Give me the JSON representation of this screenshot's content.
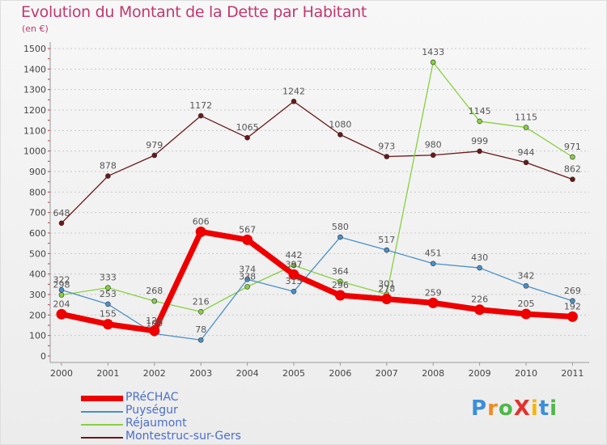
{
  "title": "Evolution du Montant de la Dette par Habitant",
  "subtitle": "(en €)",
  "logo": {
    "text": "ProXiti",
    "letters": [
      "P",
      "r",
      "o",
      "X",
      "i",
      "t",
      "i"
    ],
    "colors": [
      "#3a8fd8",
      "#f08a24",
      "#4db848",
      "#e4312b",
      "#f7b500",
      "#3a8fd8",
      "#4db848"
    ]
  },
  "chart_data": {
    "type": "line",
    "categories": [
      "2000",
      "2001",
      "2002",
      "2003",
      "2004",
      "2005",
      "2006",
      "2007",
      "2008",
      "2009",
      "2010",
      "2011"
    ],
    "ylim": [
      0,
      1500
    ],
    "yticks": [
      "0",
      "100",
      "200",
      "300",
      "400",
      "500",
      "600",
      "700",
      "800",
      "900",
      "1000",
      "1100",
      "1200",
      "1300",
      "1400",
      "1500"
    ],
    "grid": "horizontal dotted",
    "legend_placement": "bottom-left",
    "series": [
      {
        "name": "PRéCHAC",
        "color": "#ee0000",
        "values": [
          204,
          155,
          123,
          606,
          567,
          397,
          296,
          278,
          259,
          226,
          205,
          192
        ],
        "labels": [
          "204",
          "155",
          "123",
          "606",
          "567",
          "397",
          "296",
          "278",
          "259",
          "226",
          "205",
          "192"
        ]
      },
      {
        "name": "Puységur",
        "color": "#4a90c8",
        "values": [
          322,
          253,
          109,
          78,
          374,
          315,
          580,
          517,
          451,
          430,
          342,
          269
        ],
        "labels": [
          "322",
          "253",
          "109",
          "78",
          "374",
          "315",
          "580",
          "517",
          "451",
          "430",
          "342",
          "269"
        ]
      },
      {
        "name": "Réjaumont",
        "color": "#88d040",
        "values": [
          298,
          333,
          268,
          216,
          338,
          442,
          364,
          301,
          1433,
          1145,
          1115,
          971
        ],
        "labels": [
          "298",
          "333",
          "268",
          "216",
          "338",
          "442",
          "364",
          "301",
          "1433",
          "1145",
          "1115",
          "971"
        ]
      },
      {
        "name": "Montestruc-sur-Gers",
        "color": "#6b1818",
        "values": [
          648,
          878,
          979,
          1172,
          1065,
          1242,
          1080,
          973,
          980,
          999,
          944,
          862
        ],
        "labels": [
          "648",
          "878",
          "979",
          "1172",
          "1065",
          "1242",
          "1080",
          "973",
          "980",
          "999",
          "944",
          "862"
        ]
      }
    ]
  }
}
